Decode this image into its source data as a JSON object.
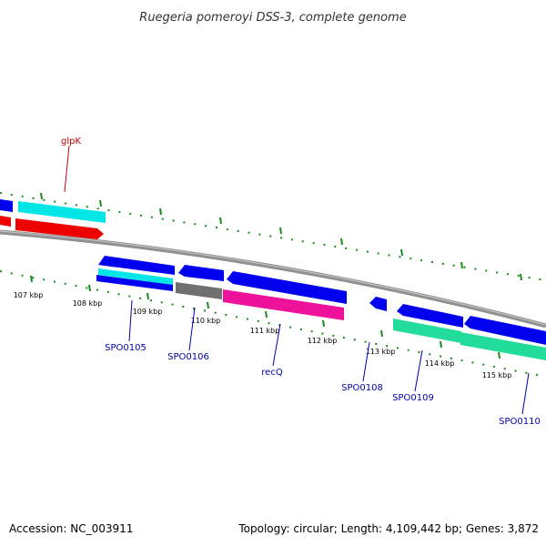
{
  "title": "Ruegeria pomeroyi DSS-3, complete genome",
  "accession": "Accession: NC_003911",
  "topology": "Topology: circular; Length: 4,109,442 bp; Genes: 3,872",
  "colors": {
    "backbone": "#808080",
    "tick": "#1a8a1a",
    "forward_gene": "#0000ee",
    "cyan_gene": "#00e5e5",
    "red_gene": "#ee0000",
    "gray_gene": "#707070",
    "magenta_gene": "#ee1199",
    "teal_gene": "#22dd99",
    "label_blue": "#0000aa",
    "label_red": "#cc0000"
  },
  "ticks": [
    "107 kbp",
    "108 kbp",
    "109 kbp",
    "110 kbp",
    "111 kbp",
    "112 kbp",
    "113 kbp",
    "114 kbp",
    "115 kbp"
  ],
  "gene_labels": [
    {
      "name": "glpK",
      "color": "red"
    },
    {
      "name": "SPO0105",
      "color": "blue"
    },
    {
      "name": "SPO0106",
      "color": "blue"
    },
    {
      "name": "recQ",
      "color": "blue"
    },
    {
      "name": "SPO0108",
      "color": "blue"
    },
    {
      "name": "SPO0109",
      "color": "blue"
    },
    {
      "name": "SPO0110",
      "color": "blue"
    }
  ]
}
